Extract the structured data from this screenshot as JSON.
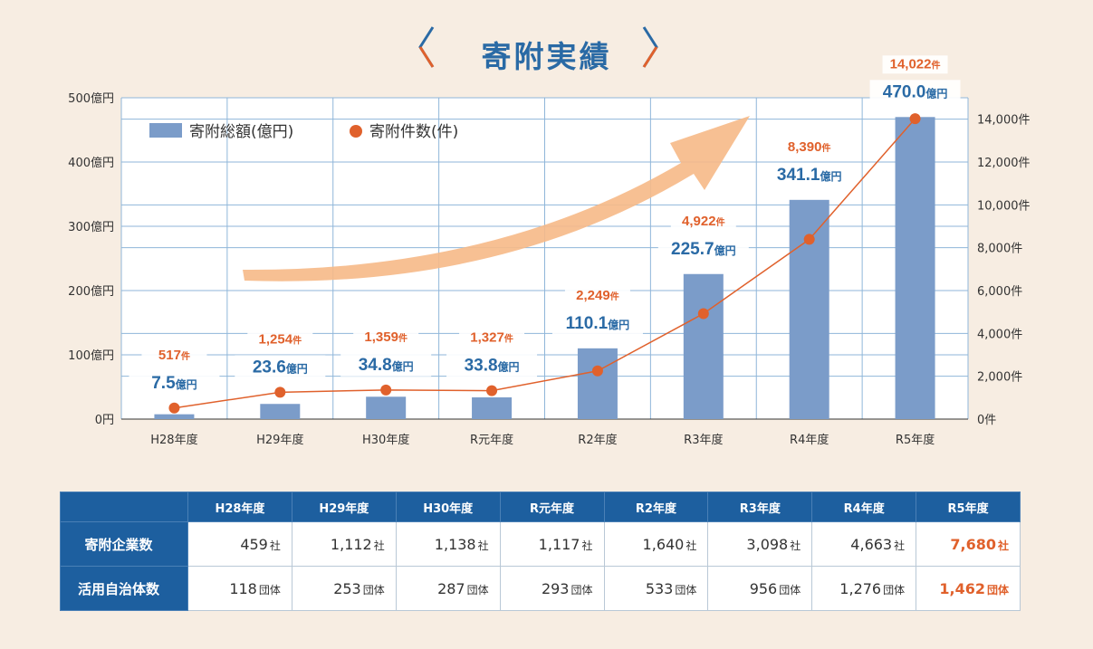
{
  "title": "寄附実績",
  "legend": {
    "amount_label": "寄附総額(億円)",
    "count_label": "寄附件数(件)"
  },
  "colors": {
    "bar": "#7b9cc9",
    "line": "#e0612c",
    "accent_blue": "#2a6aa5",
    "header_blue": "#1d5f9f",
    "arrow": "#f6b987",
    "background": "#f7ede2"
  },
  "chart_data": {
    "type": "bar",
    "categories": [
      "H28年度",
      "H29年度",
      "H30年度",
      "R元年度",
      "R2年度",
      "R3年度",
      "R4年度",
      "R5年度"
    ],
    "series": [
      {
        "name": "寄附総額(億円)",
        "type": "bar",
        "axis": "left",
        "values": [
          7.5,
          23.6,
          34.8,
          33.8,
          110.1,
          225.7,
          341.1,
          470.0
        ],
        "labels": [
          "7.5",
          "23.6",
          "34.8",
          "33.8",
          "110.1",
          "225.7",
          "341.1",
          "470.0"
        ],
        "unit": "億円"
      },
      {
        "name": "寄附件数(件)",
        "type": "line",
        "axis": "right",
        "values": [
          517,
          1254,
          1359,
          1327,
          2249,
          4922,
          8390,
          14022
        ],
        "labels": [
          "517",
          "1,254",
          "1,359",
          "1,327",
          "2,249",
          "4,922",
          "8,390",
          "14,022"
        ],
        "unit": "件"
      }
    ],
    "y_left": {
      "ylim": [
        0,
        500
      ],
      "ticks": [
        0,
        100,
        200,
        300,
        400,
        500
      ],
      "tick_labels": [
        "0円",
        "100億円",
        "200億円",
        "300億円",
        "400億円",
        "500億円"
      ]
    },
    "y_right": {
      "ylim": [
        0,
        15000
      ],
      "ticks": [
        0,
        2000,
        4000,
        6000,
        8000,
        10000,
        12000,
        14000
      ],
      "tick_labels": [
        "0件",
        "2,000件",
        "4,000件",
        "6,000件",
        "8,000件",
        "10,000件",
        "12,000件",
        "14,000件"
      ]
    },
    "grid": true,
    "legend_position": "top-left"
  },
  "table": {
    "headers": [
      "H28年度",
      "H29年度",
      "H30年度",
      "R元年度",
      "R2年度",
      "R3年度",
      "R4年度",
      "R5年度"
    ],
    "rows": [
      {
        "label": "寄附企業数",
        "unit": "社",
        "values": [
          "459",
          "1,112",
          "1,138",
          "1,117",
          "1,640",
          "3,098",
          "4,663",
          "7,680"
        ]
      },
      {
        "label": "活用自治体数",
        "unit": "団体",
        "values": [
          "118",
          "253",
          "287",
          "293",
          "533",
          "956",
          "1,276",
          "1,462"
        ]
      }
    ]
  }
}
